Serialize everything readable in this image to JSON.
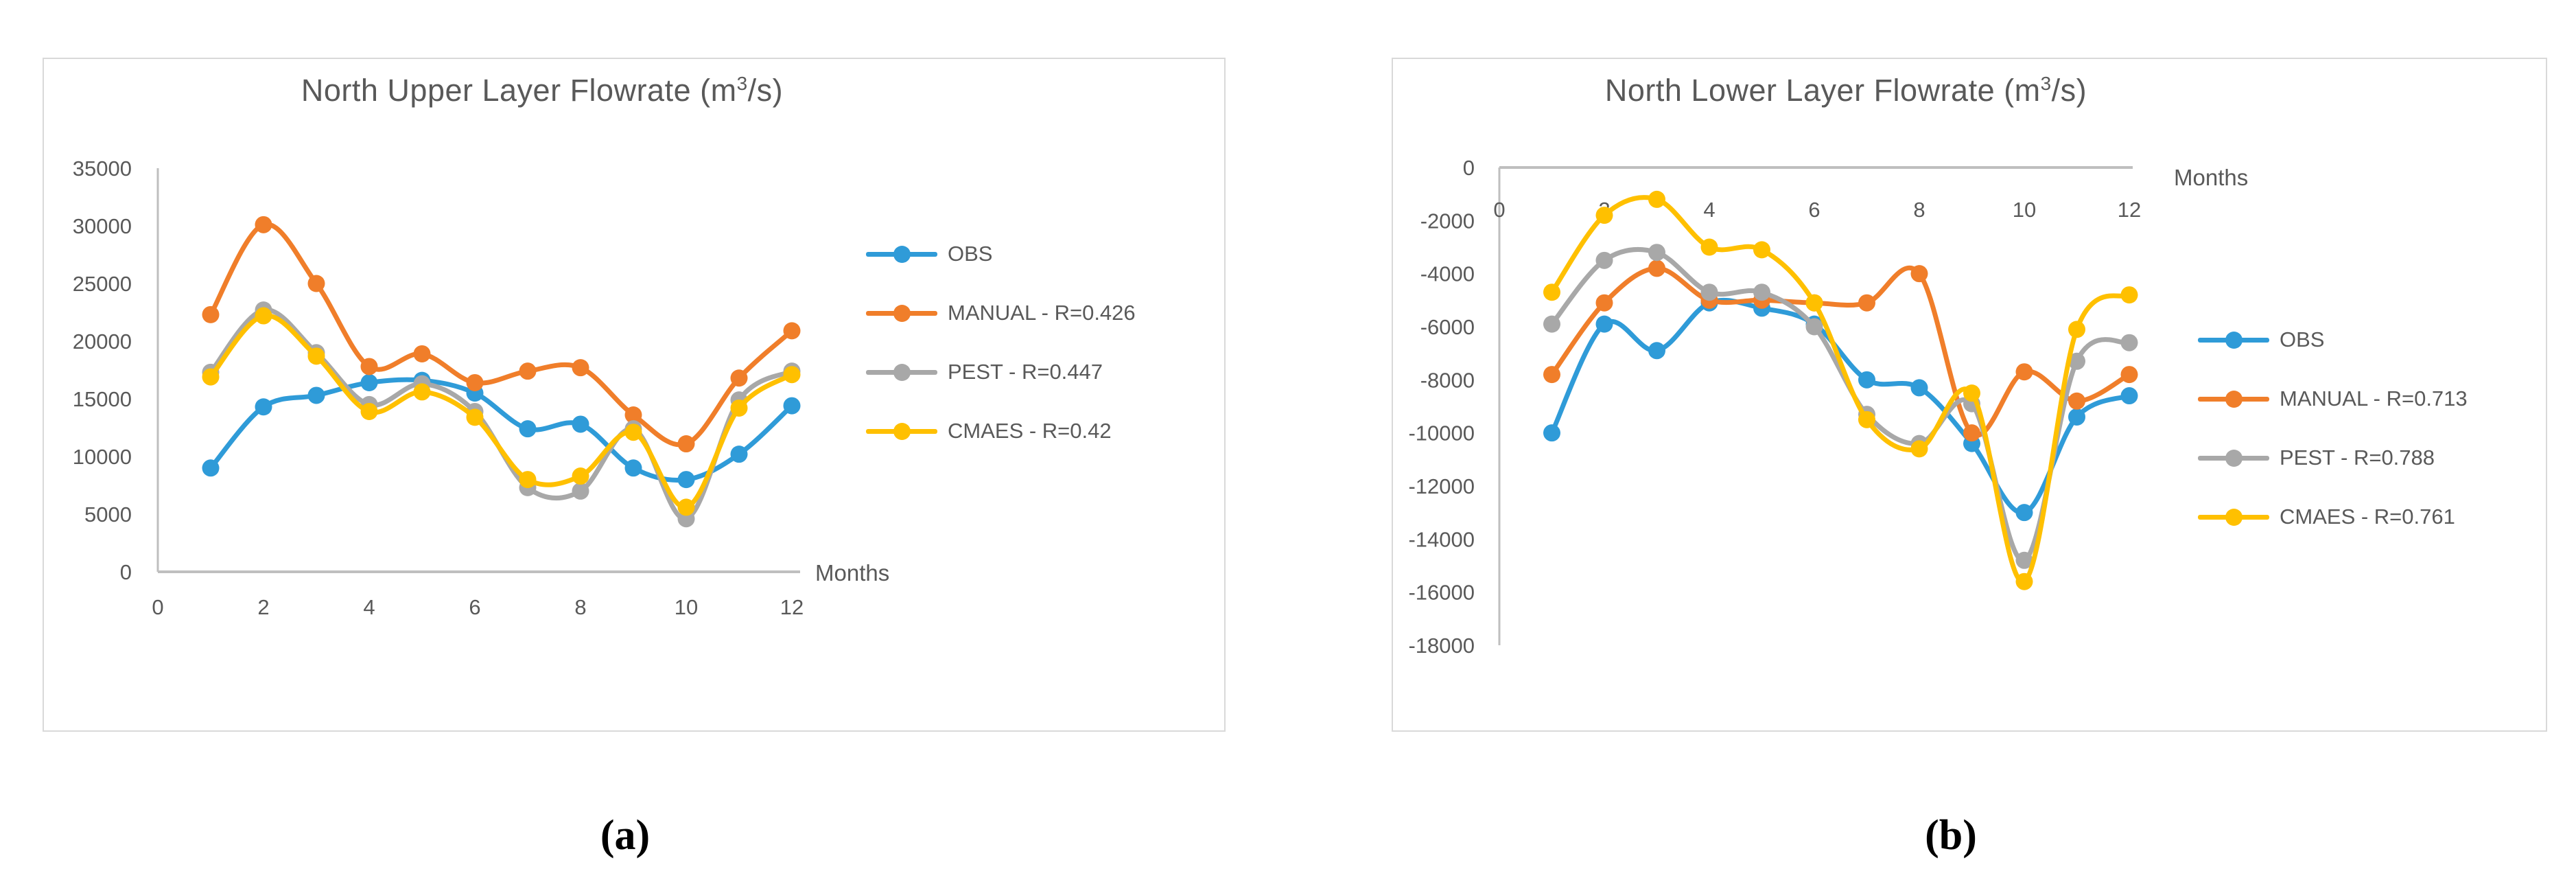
{
  "figure": {
    "captions": [
      "(a)",
      "(b)"
    ]
  },
  "charts": [
    {
      "title_prefix": "North Upper Layer Flowrate (m",
      "title_sup": "3",
      "title_suffix": "/s)",
      "x_axis_title": "Months"
    },
    {
      "title_prefix": "North Lower Layer Flowrate (m",
      "title_sup": "3",
      "title_suffix": "/s)",
      "x_axis_title": "Months"
    }
  ],
  "chart_data": [
    {
      "type": "line",
      "title": "North Upper Layer Flowrate (m3/s)",
      "xlabel": "Months",
      "ylabel": "",
      "smooth": true,
      "grid": false,
      "legend_position": "right",
      "x": [
        1,
        2,
        3,
        4,
        5,
        6,
        7,
        8,
        9,
        10,
        11,
        12
      ],
      "xlim": [
        0,
        12
      ],
      "ylim": [
        0,
        35000
      ],
      "x_ticks": [
        0,
        2,
        4,
        6,
        8,
        10,
        12
      ],
      "y_ticks": [
        35000,
        30000,
        25000,
        20000,
        15000,
        10000,
        5000,
        0
      ],
      "series": [
        {
          "name": "OBS",
          "color": "#2f9bd8",
          "values": [
            9000,
            14300,
            15300,
            16400,
            16600,
            15500,
            12400,
            12800,
            9000,
            8000,
            10200,
            14400
          ]
        },
        {
          "name": "MANUAL - R=0.426",
          "color": "#f07e2a",
          "values": [
            22300,
            30100,
            25000,
            17800,
            18900,
            16400,
            17400,
            17700,
            13600,
            11100,
            16800,
            20900
          ]
        },
        {
          "name": "PEST - R=0.447",
          "color": "#a8a8a8",
          "values": [
            17300,
            22700,
            19000,
            14500,
            16300,
            13900,
            7300,
            7000,
            12400,
            4600,
            14900,
            17400
          ]
        },
        {
          "name": "CMAES - R=0.42",
          "color": "#ffc000",
          "values": [
            16900,
            22200,
            18700,
            13900,
            15600,
            13400,
            8000,
            8300,
            12100,
            5600,
            14200,
            17100
          ]
        }
      ]
    },
    {
      "type": "line",
      "title": "North Lower Layer Flowrate (m3/s)",
      "xlabel": "Months",
      "ylabel": "",
      "smooth": true,
      "grid": false,
      "legend_position": "right",
      "x": [
        1,
        2,
        3,
        4,
        5,
        6,
        7,
        8,
        9,
        10,
        11,
        12
      ],
      "xlim": [
        0,
        12
      ],
      "ylim": [
        -18000,
        0
      ],
      "x_ticks": [
        0,
        2,
        4,
        6,
        8,
        10,
        12
      ],
      "y_ticks": [
        0,
        -2000,
        -4000,
        -6000,
        -8000,
        -10000,
        -12000,
        -14000,
        -16000,
        -18000
      ],
      "series": [
        {
          "name": "OBS",
          "color": "#2f9bd8",
          "values": [
            -10000,
            -5900,
            -6900,
            -5100,
            -5300,
            -5900,
            -8000,
            -8300,
            -10400,
            -13000,
            -9400,
            -8600
          ]
        },
        {
          "name": "MANUAL - R=0.713",
          "color": "#f07e2a",
          "values": [
            -7800,
            -5100,
            -3800,
            -5000,
            -5000,
            -5100,
            -5100,
            -4000,
            -10000,
            -7700,
            -8800,
            -7800
          ]
        },
        {
          "name": "PEST - R=0.788",
          "color": "#a8a8a8",
          "values": [
            -5900,
            -3500,
            -3200,
            -4700,
            -4700,
            -6000,
            -9300,
            -10400,
            -8900,
            -14800,
            -7300,
            -6600
          ]
        },
        {
          "name": "CMAES - R=0.761",
          "color": "#ffc000",
          "values": [
            -4700,
            -1800,
            -1200,
            -3000,
            -3100,
            -5100,
            -9500,
            -10600,
            -8500,
            -15600,
            -6100,
            -4800
          ]
        }
      ]
    }
  ]
}
